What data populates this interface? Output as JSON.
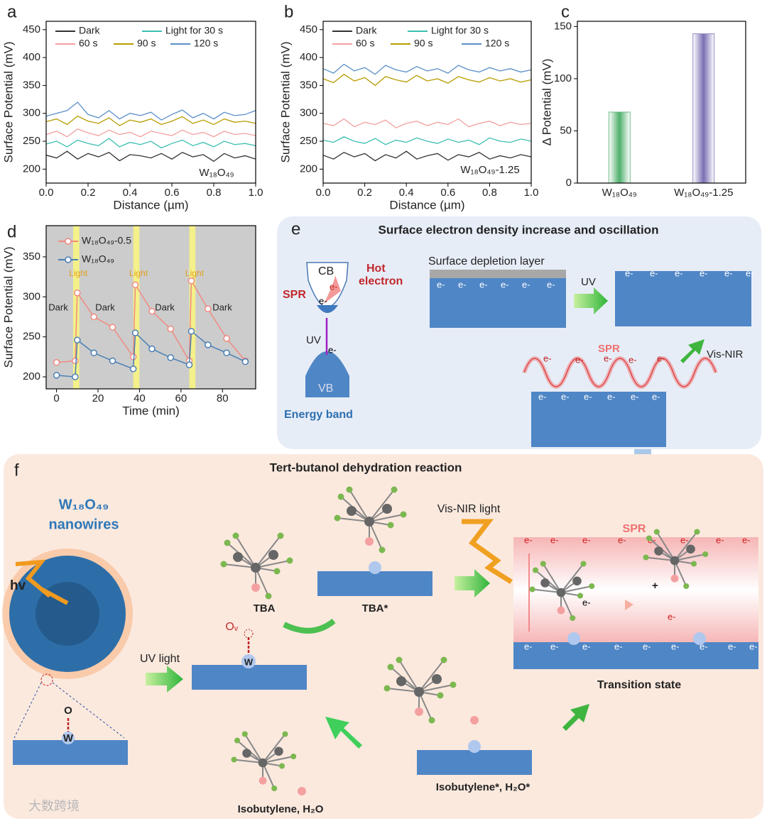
{
  "chart_data": [
    {
      "type": "line",
      "label": "a",
      "xlabel": "Distance (µm)",
      "ylabel": "Surface Potential (mV)",
      "annotation": "W₁₈O₄₉",
      "x": [
        0,
        0.05,
        0.1,
        0.15,
        0.2,
        0.25,
        0.3,
        0.35,
        0.4,
        0.45,
        0.5,
        0.55,
        0.6,
        0.65,
        0.7,
        0.75,
        0.8,
        0.85,
        0.9,
        0.95,
        1
      ],
      "xlim": [
        0,
        1
      ],
      "xticks": [
        {
          "value": 0,
          "label": "0.0"
        },
        0.2,
        0.4,
        0.6,
        0.8,
        {
          "value": 1,
          "label": "1.0"
        }
      ],
      "ylim": [
        175,
        465
      ],
      "yticks": [
        200,
        250,
        300,
        350,
        400,
        450
      ],
      "series": [
        {
          "name": "Dark",
          "color": "#333333",
          "values": [
            225,
            220,
            232,
            218,
            228,
            222,
            230,
            215,
            226,
            224,
            220,
            228,
            218,
            230,
            222,
            226,
            214,
            228,
            220,
            224,
            218
          ]
        },
        {
          "name": "Light for 30 s",
          "color": "#3cbfb0",
          "values": [
            245,
            250,
            240,
            252,
            246,
            242,
            255,
            240,
            248,
            244,
            250,
            238,
            246,
            252,
            242,
            248,
            240,
            250,
            244,
            246,
            242
          ]
        },
        {
          "name": "60 s",
          "color": "#f2a0a0",
          "values": [
            262,
            268,
            258,
            272,
            265,
            260,
            270,
            262,
            266,
            258,
            268,
            264,
            260,
            270,
            262,
            266,
            258,
            268,
            262,
            264,
            260
          ]
        },
        {
          "name": "90 s",
          "color": "#b89c00",
          "values": [
            285,
            290,
            280,
            295,
            286,
            282,
            292,
            278,
            288,
            284,
            290,
            280,
            286,
            294,
            282,
            288,
            280,
            290,
            284,
            286,
            282
          ]
        },
        {
          "name": "120 s",
          "color": "#5a8fc8",
          "values": [
            295,
            300,
            305,
            320,
            298,
            292,
            305,
            290,
            300,
            296,
            302,
            288,
            298,
            306,
            292,
            300,
            290,
            302,
            296,
            298,
            305
          ]
        }
      ]
    },
    {
      "type": "line",
      "label": "b",
      "xlabel": "Distance (µm)",
      "ylabel": "Surface Potential (mV)",
      "annotation": "W₁₈O₄₉-1.25",
      "x": [
        0,
        0.05,
        0.1,
        0.15,
        0.2,
        0.25,
        0.3,
        0.35,
        0.4,
        0.45,
        0.5,
        0.55,
        0.6,
        0.65,
        0.7,
        0.75,
        0.8,
        0.85,
        0.9,
        0.95,
        1
      ],
      "xlim": [
        0,
        1
      ],
      "xticks": [
        {
          "value": 0,
          "label": "0.0"
        },
        0.2,
        0.4,
        0.6,
        0.8,
        {
          "value": 1,
          "label": "1.0"
        }
      ],
      "ylim": [
        175,
        465
      ],
      "yticks": [
        200,
        250,
        300,
        350,
        400,
        450
      ],
      "series": [
        {
          "name": "Dark",
          "color": "#333333",
          "values": [
            225,
            218,
            230,
            222,
            228,
            215,
            226,
            220,
            232,
            218,
            224,
            228,
            216,
            226,
            222,
            230,
            218,
            224,
            220,
            226,
            222
          ]
        },
        {
          "name": "Light for 30 s",
          "color": "#3cbfb0",
          "values": [
            252,
            248,
            258,
            250,
            246,
            255,
            244,
            252,
            248,
            256,
            250,
            246,
            254,
            248,
            252,
            244,
            256,
            250,
            248,
            254,
            250
          ]
        },
        {
          "name": "60 s",
          "color": "#f2a0a0",
          "values": [
            282,
            278,
            290,
            276,
            284,
            280,
            288,
            274,
            282,
            286,
            278,
            284,
            280,
            290,
            276,
            282,
            286,
            278,
            284,
            280,
            282
          ]
        },
        {
          "name": "90 s",
          "color": "#b89c00",
          "values": [
            362,
            355,
            370,
            358,
            364,
            350,
            366,
            360,
            356,
            368,
            358,
            362,
            354,
            366,
            360,
            356,
            364,
            358,
            362,
            356,
            360
          ]
        },
        {
          "name": "120 s",
          "color": "#5a8fc8",
          "values": [
            380,
            372,
            388,
            376,
            382,
            370,
            386,
            378,
            374,
            384,
            376,
            380,
            372,
            386,
            378,
            374,
            382,
            376,
            380,
            374,
            378
          ]
        }
      ]
    },
    {
      "type": "bar",
      "label": "c",
      "ylabel": "Δ Potential (mV)",
      "categories": [
        "W₁₈O₄₉",
        "W₁₈O₄₉-1.25"
      ],
      "values": [
        68,
        143
      ],
      "colors": [
        "#4fb06c",
        "#7a6fb3"
      ],
      "ylim": [
        0,
        155
      ],
      "yticks": [
        0,
        50,
        100,
        150
      ]
    },
    {
      "type": "line",
      "label": "d",
      "xlabel": "Time (min)",
      "ylabel": "Surface Potential (mV)",
      "markers": true,
      "background": "#cccccc",
      "x": [
        0,
        9,
        10,
        18,
        27,
        37,
        38,
        46,
        55,
        64,
        65,
        73,
        82,
        91
      ],
      "xlim": [
        -5,
        96
      ],
      "xticks": [
        0,
        20,
        40,
        60,
        80
      ],
      "ylim": [
        185,
        389
      ],
      "yticks": [
        200,
        250,
        300,
        350
      ],
      "shaded_x_ranges": [
        [
          8,
          11
        ],
        [
          37,
          40
        ],
        [
          64,
          67
        ]
      ],
      "shade_color": "#f4f08a",
      "annotations": [
        "Dark",
        "Light",
        "Dark",
        "Light",
        "Dark",
        "Light",
        "Dark"
      ],
      "series": [
        {
          "name": "W₁₈O₄₉-0.5",
          "color": "#f08a80",
          "values": [
            218,
            220,
            305,
            275,
            262,
            225,
            315,
            282,
            260,
            220,
            320,
            285,
            248,
            220
          ]
        },
        {
          "name": "W₁₈O₄₉",
          "color": "#4a7fb5",
          "values": [
            202,
            200,
            246,
            230,
            220,
            210,
            255,
            235,
            224,
            215,
            257,
            240,
            230,
            219
          ]
        }
      ]
    }
  ],
  "panel_e": {
    "label": "e",
    "title": "Surface electron density increase and oscillation",
    "cb": "CB",
    "vb": "VB",
    "hot_electron": [
      "Hot",
      "electron"
    ],
    "spr": "SPR",
    "electron": "e-",
    "uv": "UV",
    "energy_band": "Energy band",
    "depletion_layer": "Surface depletion layer",
    "vis_nir": "Vis-NIR"
  },
  "panel_f": {
    "label": "f",
    "title": "Tert-butanol dehydration reaction",
    "catalyst": [
      "W₁₈O₄₉",
      "nanowires"
    ],
    "hv": "hv",
    "uv_light": "UV light",
    "vacancy": "Oᵥ",
    "w": "W",
    "o": "O",
    "tba": "TBA",
    "tba_ads": "TBA*",
    "vis_nir_light": "Vis-NIR light",
    "spr": "SPR",
    "plus": "+",
    "electron": "e-",
    "transition_state": "Transition state",
    "products_ads": "Isobutylene*, H₂O*",
    "products": "Isobutylene, H₂O"
  },
  "watermark": "大数跨境"
}
